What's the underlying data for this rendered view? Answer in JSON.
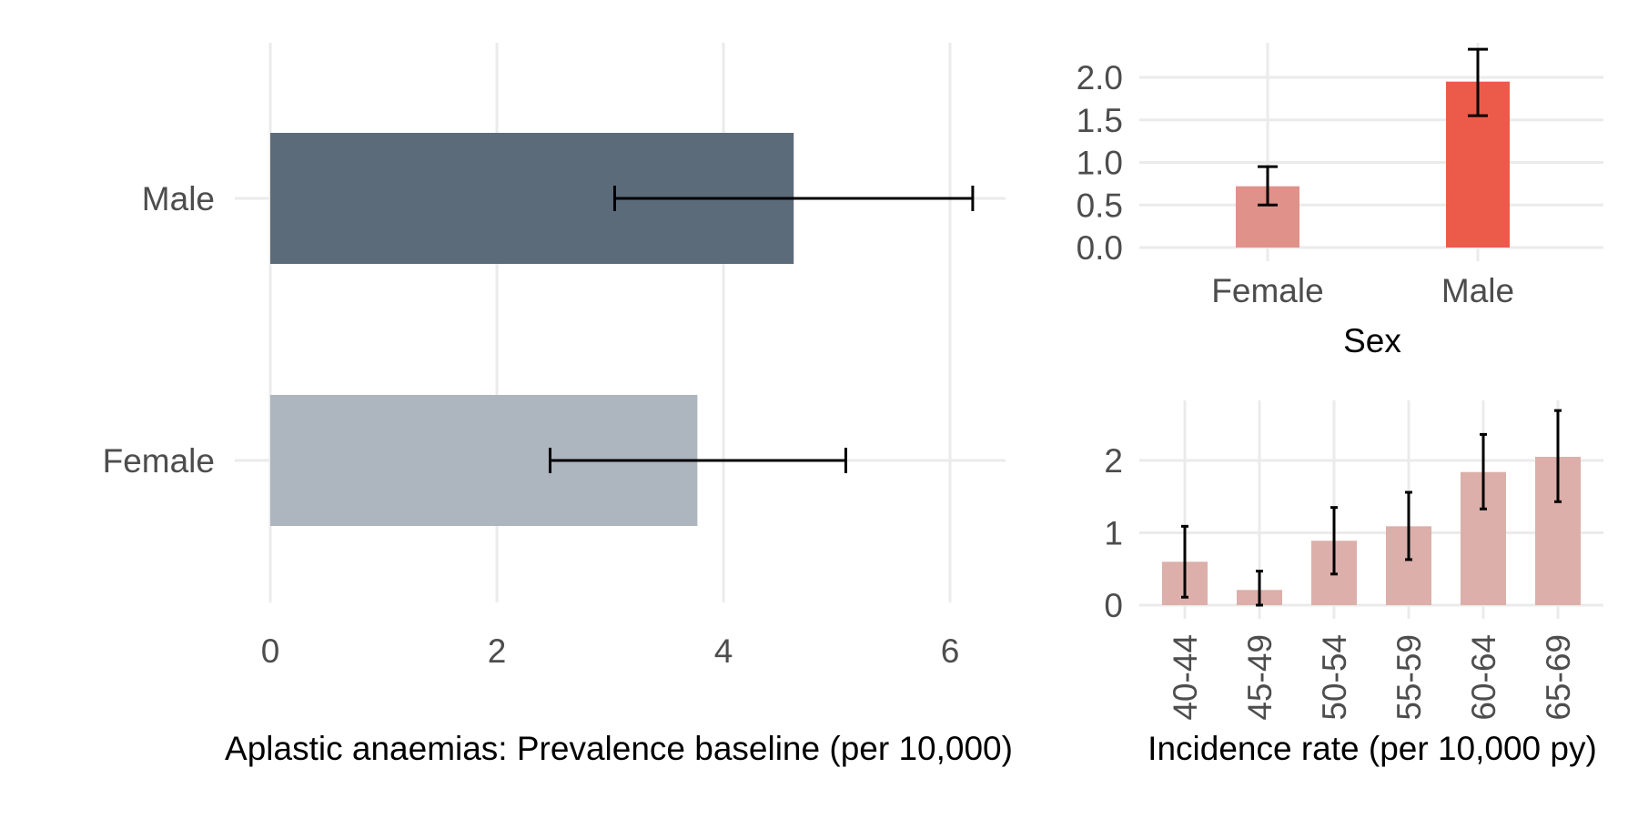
{
  "chart_data": [
    {
      "type": "bar",
      "orientation": "horizontal",
      "categories": [
        "Male",
        "Female"
      ],
      "values": [
        4.62,
        3.77
      ],
      "error_low": [
        3.04,
        2.47
      ],
      "error_high": [
        6.2,
        5.08
      ],
      "colors": [
        "#5c6b7a",
        "#adb5bf"
      ],
      "xlabel": "Aplastic anaemias: Prevalence baseline (per 10,000)",
      "ylabel": "",
      "xlim": [
        0,
        6.5
      ],
      "xticks": [
        "0",
        "2",
        "4",
        "6"
      ],
      "grid": true,
      "legend": "none"
    },
    {
      "type": "bar",
      "categories": [
        "Female",
        "Male"
      ],
      "values": [
        0.72,
        1.95
      ],
      "error_low": [
        0.5,
        1.55
      ],
      "error_high": [
        0.95,
        2.33
      ],
      "colors": [
        "#e0918a",
        "#ec5b4a"
      ],
      "xlabel": "Sex",
      "ylabel": "",
      "ylim": [
        0,
        2.33
      ],
      "yticks": [
        "0.0",
        "0.5",
        "1.0",
        "1.5",
        "2.0"
      ],
      "grid": true,
      "legend": "none"
    },
    {
      "type": "bar",
      "categories": [
        "40-44",
        "45-49",
        "50-54",
        "55-59",
        "60-64",
        "65-69"
      ],
      "values": [
        0.6,
        0.21,
        0.89,
        1.09,
        1.84,
        2.05
      ],
      "error_low": [
        0.11,
        0.0,
        0.43,
        0.63,
        1.33,
        1.43
      ],
      "error_high": [
        1.09,
        0.47,
        1.35,
        1.56,
        2.36,
        2.69
      ],
      "colors": [
        "#dcafaa"
      ],
      "xlabel": "Incidence rate (per 10,000 py)",
      "ylabel": "",
      "ylim": [
        0,
        2.69
      ],
      "yticks": [
        "0",
        "1",
        "2"
      ],
      "grid": true,
      "legend": "none"
    }
  ]
}
